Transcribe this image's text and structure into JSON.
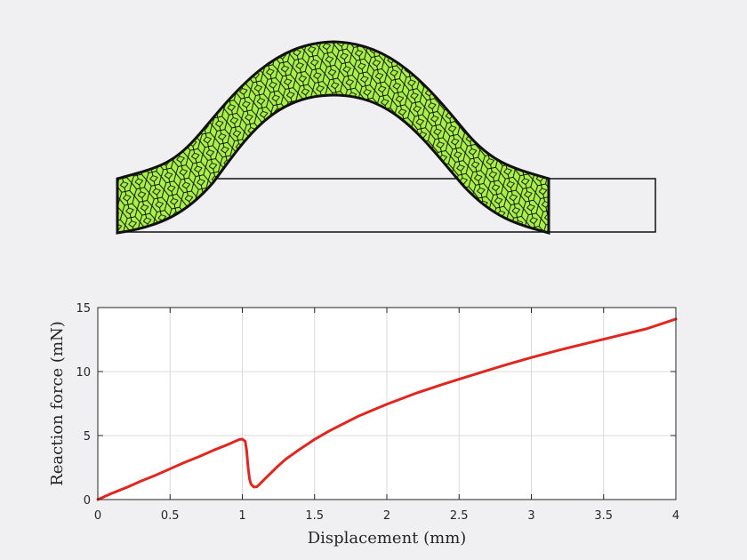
{
  "colors": {
    "background": "#f0f0f3",
    "mesh_fill": "#a8f04a",
    "mesh_edge": "#111111",
    "curve": "#e0271f",
    "grid": "#d9d9d9",
    "axes": "#262626"
  },
  "mesh_figure": {
    "description_kind": "deformed voronoi-meshed arch on a rectangular outline"
  },
  "chart_data": {
    "type": "line",
    "title": "",
    "xlabel": "Displacement (mm)",
    "ylabel": "Reaction force (mN)",
    "xlim": [
      0,
      4
    ],
    "ylim": [
      0,
      15
    ],
    "xticks": [
      0,
      0.5,
      1,
      1.5,
      2,
      2.5,
      3,
      3.5,
      4
    ],
    "xtick_labels": [
      "0",
      "0.5",
      "1",
      "1.5",
      "2",
      "2.5",
      "3",
      "3.5",
      "4"
    ],
    "yticks": [
      0,
      5,
      10,
      15
    ],
    "ytick_labels": [
      "0",
      "5",
      "10",
      "15"
    ],
    "grid": true,
    "series": [
      {
        "color": "#e0271f",
        "x": [
          0,
          0.1,
          0.2,
          0.3,
          0.4,
          0.5,
          0.6,
          0.7,
          0.8,
          0.9,
          0.95,
          0.98,
          1.0,
          1.02,
          1.03,
          1.04,
          1.05,
          1.06,
          1.08,
          1.1,
          1.12,
          1.15,
          1.2,
          1.25,
          1.3,
          1.4,
          1.5,
          1.6,
          1.8,
          2.0,
          2.2,
          2.4,
          2.6,
          2.8,
          3.0,
          3.2,
          3.4,
          3.6,
          3.8,
          4.0
        ],
        "y": [
          0,
          0.5,
          0.95,
          1.45,
          1.9,
          2.4,
          2.9,
          3.35,
          3.85,
          4.3,
          4.55,
          4.7,
          4.72,
          4.55,
          3.8,
          2.5,
          1.6,
          1.2,
          0.98,
          1.0,
          1.2,
          1.55,
          2.1,
          2.65,
          3.15,
          3.95,
          4.7,
          5.35,
          6.5,
          7.45,
          8.3,
          9.05,
          9.75,
          10.45,
          11.1,
          11.7,
          12.25,
          12.8,
          13.35,
          14.1
        ]
      }
    ]
  }
}
